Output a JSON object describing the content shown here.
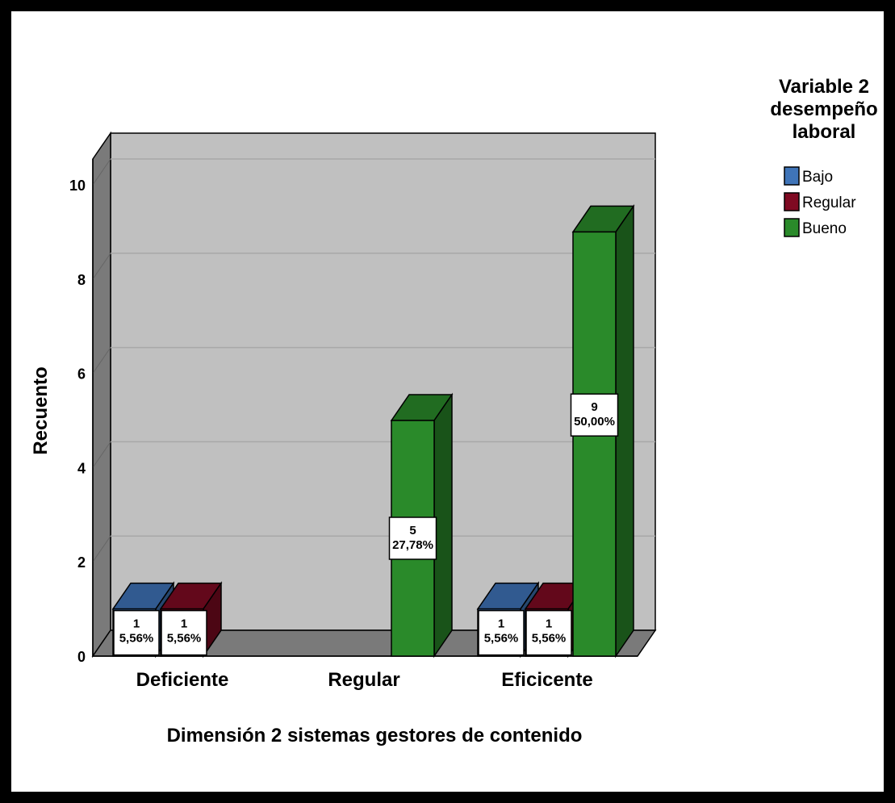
{
  "chart_data": {
    "type": "bar",
    "style": "3d-clustered",
    "xlabel": "Dimensión 2 sistemas gestores de contenido",
    "ylabel": "Recuento",
    "categories": [
      "Deficiente",
      "Regular",
      "Eficicente"
    ],
    "ylim": [
      0,
      10
    ],
    "yticks": [
      "0",
      "2",
      "4",
      "6",
      "8",
      "10"
    ],
    "grid": true,
    "legend": {
      "title_lines": [
        "Variable 2",
        "desempeño",
        "laboral"
      ],
      "placement": "top-right"
    },
    "series": [
      {
        "name": "Bajo",
        "color": "#3f74b8",
        "values": [
          1,
          0,
          1
        ],
        "labels": [
          [
            "1",
            "5,56%"
          ],
          null,
          [
            "1",
            "5,56%"
          ]
        ]
      },
      {
        "name": "Regular",
        "color": "#7f0a22",
        "values": [
          1,
          0,
          1
        ],
        "labels": [
          [
            "1",
            "5,56%"
          ],
          null,
          [
            "1",
            "5,56%"
          ]
        ]
      },
      {
        "name": "Bueno",
        "color": "#2a8a2a",
        "values": [
          0,
          5,
          9
        ],
        "labels": [
          null,
          [
            "5",
            "27,78%"
          ],
          [
            "9",
            "50,00%"
          ]
        ]
      }
    ]
  }
}
